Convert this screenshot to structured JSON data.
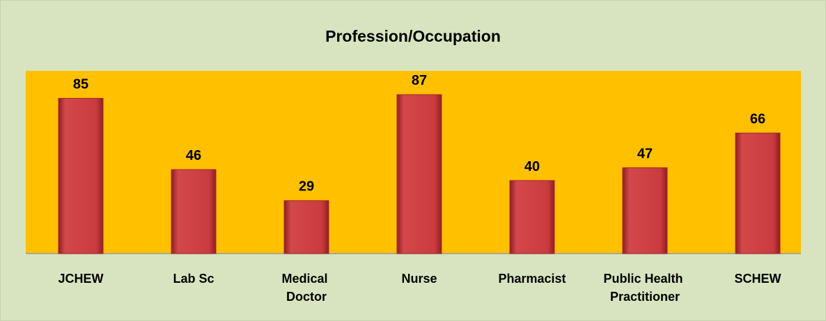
{
  "chart_data": {
    "type": "bar",
    "title": "Profession/Occupation",
    "categories": [
      "JCHEW",
      "Lab Sc",
      "Medical Doctor",
      "Nurse",
      "Pharmacist",
      "Public Health Practitioner",
      "SCHEW"
    ],
    "values": [
      85,
      46,
      29,
      87,
      40,
      47,
      66
    ],
    "color": "#c9393c",
    "ylim": [
      0,
      100
    ]
  }
}
